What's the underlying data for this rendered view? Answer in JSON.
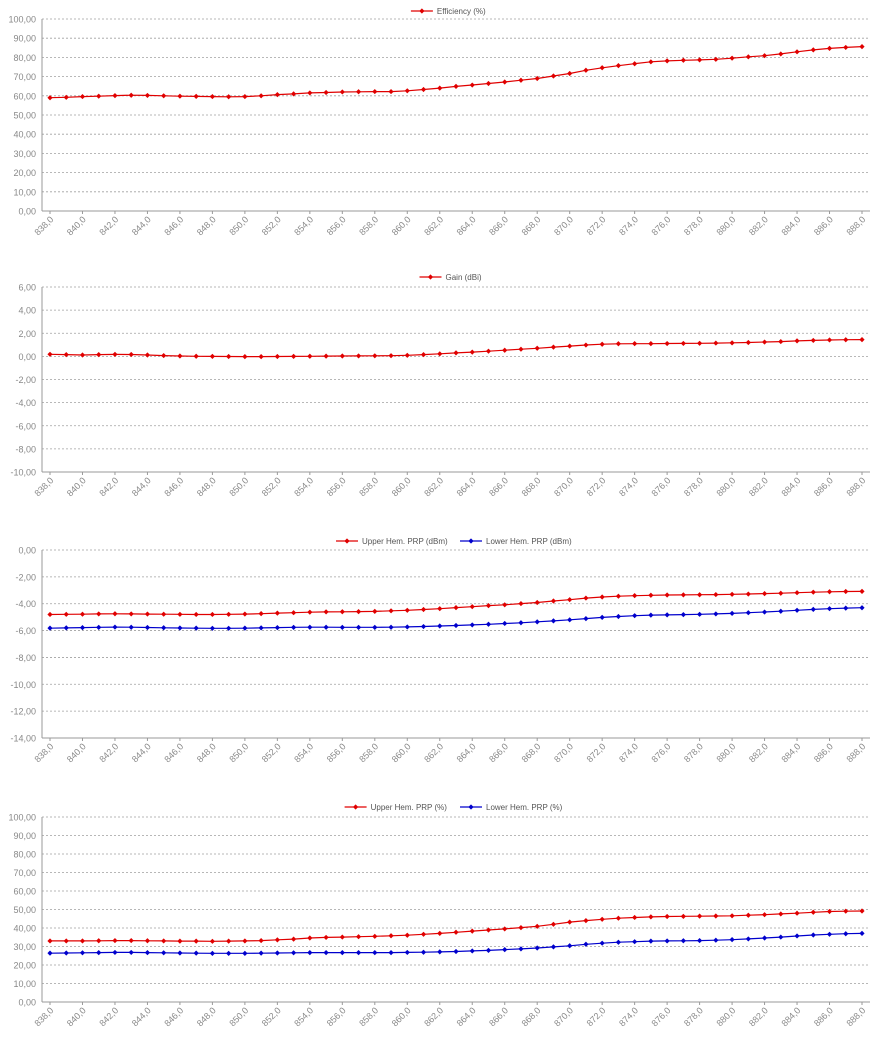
{
  "chart_data": [
    {
      "type": "line",
      "x": [
        "838,0",
        "839,0",
        "840,0",
        "841,0",
        "842,0",
        "843,0",
        "844,0",
        "845,0",
        "846,0",
        "847,0",
        "848,0",
        "849,0",
        "850,0",
        "851,0",
        "852,0",
        "853,0",
        "854,0",
        "855,0",
        "856,0",
        "857,0",
        "858,0",
        "859,0",
        "860,0",
        "861,0",
        "862,0",
        "863,0",
        "864,0",
        "865,0",
        "866,0",
        "867,0",
        "868,0",
        "869,0",
        "870,0",
        "871,0",
        "872,0",
        "873,0",
        "874,0",
        "875,0",
        "876,0",
        "877,0",
        "878,0",
        "879,0",
        "880,0",
        "881,0",
        "882,0",
        "883,0",
        "884,0",
        "885,0",
        "886,0",
        "887,0",
        "888,0"
      ],
      "x_tick_labels": [
        "838,0",
        "840,0",
        "842,0",
        "844,0",
        "846,0",
        "848,0",
        "850,0",
        "852,0",
        "854,0",
        "856,0",
        "858,0",
        "860,0",
        "862,0",
        "864,0",
        "866,0",
        "868,0",
        "870,0",
        "872,0",
        "874,0",
        "876,0",
        "878,0",
        "880,0",
        "882,0",
        "884,0",
        "886,0",
        "888,0"
      ],
      "y_tick_labels": [
        "0,00",
        "10,00",
        "20,00",
        "30,00",
        "40,00",
        "50,00",
        "60,00",
        "70,00",
        "80,00",
        "90,00",
        "100,00"
      ],
      "ylim": [
        0,
        100
      ],
      "grid": true,
      "legend_position": "top-center",
      "series": [
        {
          "name": "Efficiency (%)",
          "color": "#e00000",
          "values": [
            59.0,
            59.2,
            59.6,
            59.8,
            60.1,
            60.3,
            60.2,
            60.0,
            59.8,
            59.7,
            59.6,
            59.5,
            59.6,
            60.0,
            60.6,
            61.0,
            61.5,
            61.7,
            62.0,
            62.1,
            62.2,
            62.2,
            62.6,
            63.3,
            64.0,
            64.9,
            65.6,
            66.4,
            67.2,
            68.1,
            69.0,
            70.3,
            71.6,
            73.3,
            74.6,
            75.7,
            76.7,
            77.7,
            78.2,
            78.5,
            78.7,
            79.0,
            79.6,
            80.3,
            80.9,
            81.8,
            82.9,
            83.9,
            84.7,
            85.2,
            85.6
          ]
        }
      ]
    },
    {
      "type": "line",
      "x": [
        "838,0",
        "839,0",
        "840,0",
        "841,0",
        "842,0",
        "843,0",
        "844,0",
        "845,0",
        "846,0",
        "847,0",
        "848,0",
        "849,0",
        "850,0",
        "851,0",
        "852,0",
        "853,0",
        "854,0",
        "855,0",
        "856,0",
        "857,0",
        "858,0",
        "859,0",
        "860,0",
        "861,0",
        "862,0",
        "863,0",
        "864,0",
        "865,0",
        "866,0",
        "867,0",
        "868,0",
        "869,0",
        "870,0",
        "871,0",
        "872,0",
        "873,0",
        "874,0",
        "875,0",
        "876,0",
        "877,0",
        "878,0",
        "879,0",
        "880,0",
        "881,0",
        "882,0",
        "883,0",
        "884,0",
        "885,0",
        "886,0",
        "887,0",
        "888,0"
      ],
      "x_tick_labels": [
        "838,0",
        "840,0",
        "842,0",
        "844,0",
        "846,0",
        "848,0",
        "850,0",
        "852,0",
        "854,0",
        "856,0",
        "858,0",
        "860,0",
        "862,0",
        "864,0",
        "866,0",
        "868,0",
        "870,0",
        "872,0",
        "874,0",
        "876,0",
        "878,0",
        "880,0",
        "882,0",
        "884,0",
        "886,0",
        "888,0"
      ],
      "y_tick_labels": [
        "-10,00",
        "-8,00",
        "-6,00",
        "-4,00",
        "-2,00",
        "0,00",
        "2,00",
        "4,00",
        "6,00"
      ],
      "ylim": [
        -10,
        6
      ],
      "grid": true,
      "legend_position": "top-center",
      "series": [
        {
          "name": "Gain (dBi)",
          "color": "#e00000",
          "values": [
            0.18,
            0.15,
            0.12,
            0.15,
            0.17,
            0.16,
            0.12,
            0.07,
            0.03,
            0.01,
            0.0,
            -0.01,
            -0.02,
            -0.02,
            -0.01,
            0.0,
            0.01,
            0.02,
            0.03,
            0.04,
            0.05,
            0.06,
            0.09,
            0.15,
            0.22,
            0.3,
            0.37,
            0.45,
            0.53,
            0.62,
            0.7,
            0.8,
            0.89,
            0.98,
            1.05,
            1.09,
            1.1,
            1.1,
            1.11,
            1.12,
            1.13,
            1.15,
            1.17,
            1.2,
            1.24,
            1.28,
            1.34,
            1.38,
            1.42,
            1.44,
            1.45
          ]
        }
      ]
    },
    {
      "type": "line",
      "x": [
        "838,0",
        "839,0",
        "840,0",
        "841,0",
        "842,0",
        "843,0",
        "844,0",
        "845,0",
        "846,0",
        "847,0",
        "848,0",
        "849,0",
        "850,0",
        "851,0",
        "852,0",
        "853,0",
        "854,0",
        "855,0",
        "856,0",
        "857,0",
        "858,0",
        "859,0",
        "860,0",
        "861,0",
        "862,0",
        "863,0",
        "864,0",
        "865,0",
        "866,0",
        "867,0",
        "868,0",
        "869,0",
        "870,0",
        "871,0",
        "872,0",
        "873,0",
        "874,0",
        "875,0",
        "876,0",
        "877,0",
        "878,0",
        "879,0",
        "880,0",
        "881,0",
        "882,0",
        "883,0",
        "884,0",
        "885,0",
        "886,0",
        "887,0",
        "888,0"
      ],
      "x_tick_labels": [
        "838,0",
        "840,0",
        "842,0",
        "844,0",
        "846,0",
        "848,0",
        "850,0",
        "852,0",
        "854,0",
        "856,0",
        "858,0",
        "860,0",
        "862,0",
        "864,0",
        "866,0",
        "868,0",
        "870,0",
        "872,0",
        "874,0",
        "876,0",
        "878,0",
        "880,0",
        "882,0",
        "884,0",
        "886,0",
        "888,0"
      ],
      "y_tick_labels": [
        "-14,00",
        "-12,00",
        "-10,00",
        "-8,00",
        "-6,00",
        "-4,00",
        "-2,00",
        "0,00"
      ],
      "ylim": [
        -14,
        0
      ],
      "grid": true,
      "legend_position": "top-center",
      "series": [
        {
          "name": "Upper Hem. PRP (dBm)",
          "color": "#e00000",
          "values": [
            -4.8,
            -4.79,
            -4.78,
            -4.76,
            -4.75,
            -4.76,
            -4.77,
            -4.78,
            -4.79,
            -4.8,
            -4.8,
            -4.79,
            -4.77,
            -4.74,
            -4.7,
            -4.67,
            -4.63,
            -4.61,
            -4.6,
            -4.59,
            -4.57,
            -4.53,
            -4.49,
            -4.43,
            -4.37,
            -4.29,
            -4.22,
            -4.14,
            -4.08,
            -3.99,
            -3.91,
            -3.8,
            -3.7,
            -3.58,
            -3.5,
            -3.44,
            -3.4,
            -3.37,
            -3.35,
            -3.34,
            -3.33,
            -3.32,
            -3.3,
            -3.28,
            -3.25,
            -3.22,
            -3.18,
            -3.14,
            -3.11,
            -3.09,
            -3.08
          ]
        },
        {
          "name": "Lower Hem. PRP (dBm)",
          "color": "#0000cc",
          "values": [
            -5.82,
            -5.8,
            -5.78,
            -5.76,
            -5.74,
            -5.75,
            -5.77,
            -5.79,
            -5.81,
            -5.82,
            -5.83,
            -5.83,
            -5.82,
            -5.8,
            -5.78,
            -5.76,
            -5.75,
            -5.75,
            -5.76,
            -5.76,
            -5.76,
            -5.75,
            -5.73,
            -5.7,
            -5.66,
            -5.62,
            -5.58,
            -5.53,
            -5.47,
            -5.42,
            -5.35,
            -5.28,
            -5.2,
            -5.11,
            -5.02,
            -4.95,
            -4.89,
            -4.85,
            -4.83,
            -4.81,
            -4.79,
            -4.76,
            -4.72,
            -4.67,
            -4.62,
            -4.56,
            -4.49,
            -4.42,
            -4.37,
            -4.33,
            -4.3
          ]
        }
      ]
    },
    {
      "type": "line",
      "x": [
        "838,0",
        "839,0",
        "840,0",
        "841,0",
        "842,0",
        "843,0",
        "844,0",
        "845,0",
        "846,0",
        "847,0",
        "848,0",
        "849,0",
        "850,0",
        "851,0",
        "852,0",
        "853,0",
        "854,0",
        "855,0",
        "856,0",
        "857,0",
        "858,0",
        "859,0",
        "860,0",
        "861,0",
        "862,0",
        "863,0",
        "864,0",
        "865,0",
        "866,0",
        "867,0",
        "868,0",
        "869,0",
        "870,0",
        "871,0",
        "872,0",
        "873,0",
        "874,0",
        "875,0",
        "876,0",
        "877,0",
        "878,0",
        "879,0",
        "880,0",
        "881,0",
        "882,0",
        "883,0",
        "884,0",
        "885,0",
        "886,0",
        "887,0",
        "888,0"
      ],
      "x_tick_labels": [
        "838,0",
        "840,0",
        "842,0",
        "844,0",
        "846,0",
        "848,0",
        "850,0",
        "852,0",
        "854,0",
        "856,0",
        "858,0",
        "860,0",
        "862,0",
        "864,0",
        "866,0",
        "868,0",
        "870,0",
        "872,0",
        "874,0",
        "876,0",
        "878,0",
        "880,0",
        "882,0",
        "884,0",
        "886,0",
        "888,0"
      ],
      "y_tick_labels": [
        "0,00",
        "10,00",
        "20,00",
        "30,00",
        "40,00",
        "50,00",
        "60,00",
        "70,00",
        "80,00",
        "90,00",
        "100,00"
      ],
      "ylim": [
        0,
        100
      ],
      "grid": true,
      "legend_position": "top-center",
      "series": [
        {
          "name": "Upper Hem. PRP (%)",
          "color": "#e00000",
          "values": [
            33.0,
            33.0,
            33.0,
            33.1,
            33.2,
            33.2,
            33.1,
            33.0,
            32.9,
            32.9,
            32.8,
            32.9,
            33.0,
            33.2,
            33.6,
            34.0,
            34.6,
            34.9,
            35.1,
            35.3,
            35.5,
            35.8,
            36.1,
            36.6,
            37.1,
            37.7,
            38.3,
            38.9,
            39.5,
            40.2,
            40.9,
            42.0,
            43.2,
            44.0,
            44.7,
            45.3,
            45.7,
            46.0,
            46.2,
            46.3,
            46.4,
            46.5,
            46.6,
            46.9,
            47.2,
            47.6,
            48.0,
            48.5,
            48.9,
            49.1,
            49.2
          ]
        },
        {
          "name": "Lower Hem. PRP (%)",
          "color": "#0000cc",
          "values": [
            26.4,
            26.5,
            26.6,
            26.7,
            26.8,
            26.8,
            26.7,
            26.6,
            26.5,
            26.4,
            26.3,
            26.3,
            26.3,
            26.4,
            26.5,
            26.6,
            26.7,
            26.7,
            26.7,
            26.7,
            26.7,
            26.7,
            26.8,
            26.9,
            27.1,
            27.3,
            27.6,
            27.9,
            28.3,
            28.7,
            29.2,
            29.8,
            30.4,
            31.2,
            31.8,
            32.3,
            32.6,
            32.9,
            33.0,
            33.1,
            33.2,
            33.4,
            33.7,
            34.1,
            34.6,
            35.1,
            35.7,
            36.2,
            36.6,
            36.9,
            37.1
          ]
        }
      ]
    }
  ]
}
